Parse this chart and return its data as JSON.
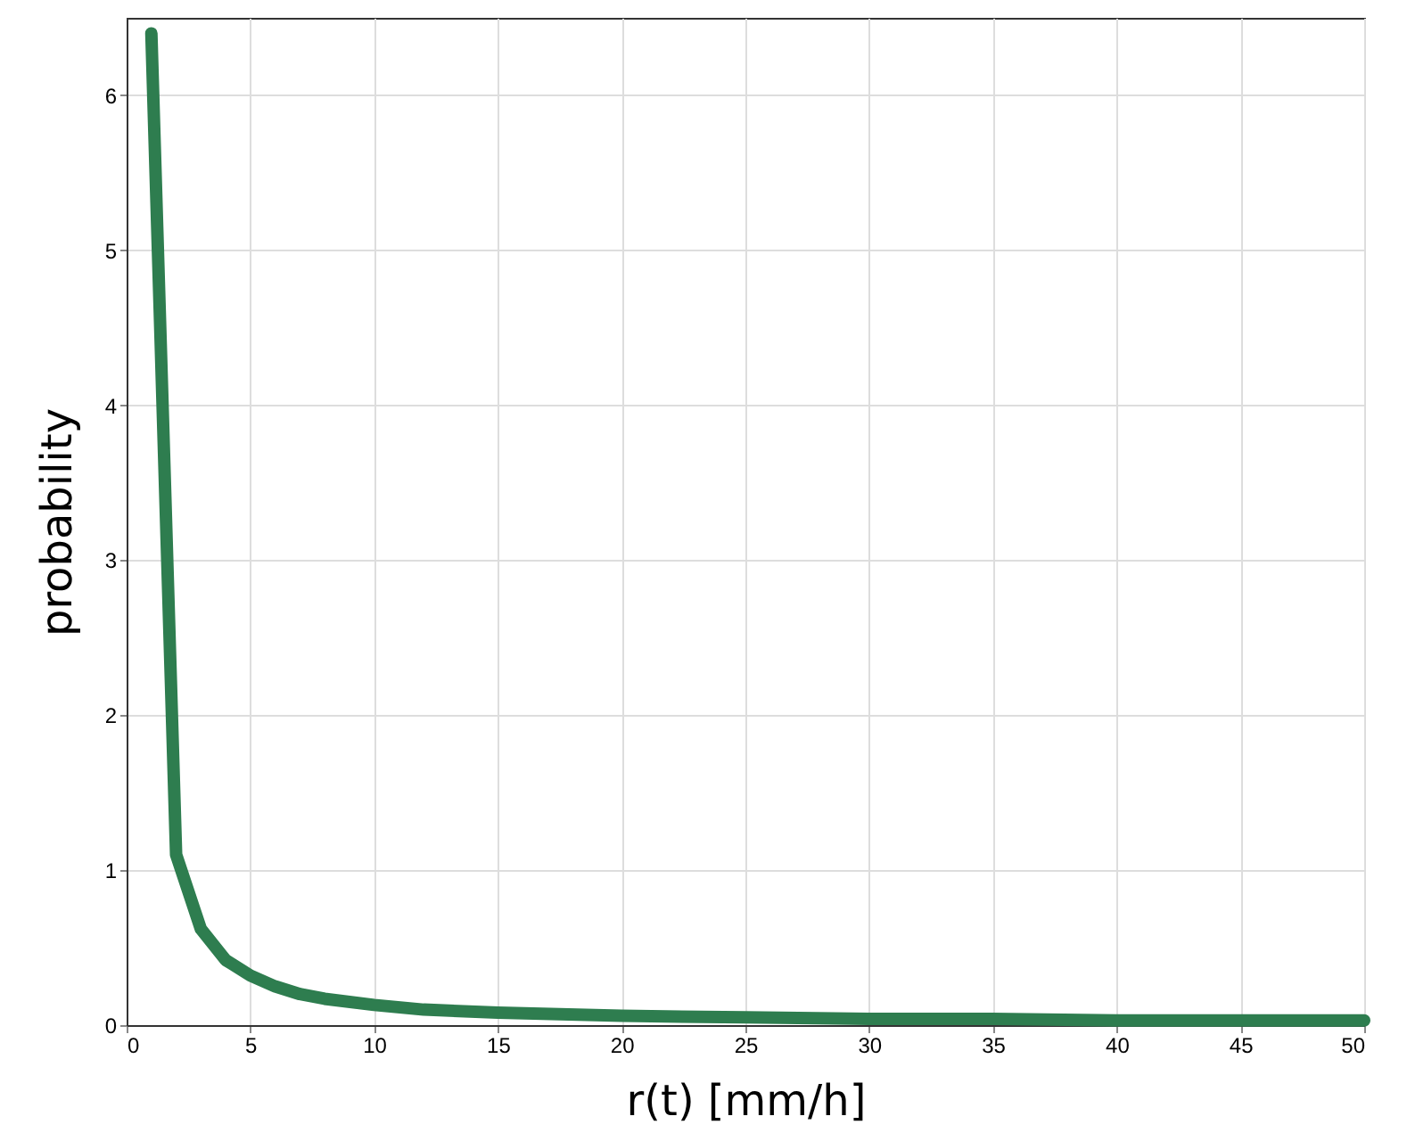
{
  "chart_data": {
    "type": "line",
    "xlabel": "r(t) [mm/h]",
    "ylabel": "probability",
    "x": [
      1,
      2,
      3,
      4,
      5,
      6,
      7,
      8,
      10,
      12,
      15,
      20,
      25,
      30,
      35,
      40,
      45,
      50
    ],
    "series": [
      {
        "color": "#2e7d4f",
        "values": [
          6.4,
          1.1,
          0.62,
          0.42,
          0.32,
          0.25,
          0.2,
          0.17,
          0.13,
          0.1,
          0.08,
          0.06,
          0.05,
          0.04,
          0.04,
          0.03,
          0.03,
          0.03
        ]
      }
    ],
    "xlim": [
      0,
      50
    ],
    "xticks": [
      0,
      5,
      10,
      15,
      20,
      25,
      30,
      35,
      40,
      45,
      50
    ],
    "ylim": [
      0,
      6.5
    ],
    "yticks": [
      0,
      1,
      2,
      3,
      4,
      5,
      6
    ],
    "grid": true,
    "line_style": "solid"
  }
}
